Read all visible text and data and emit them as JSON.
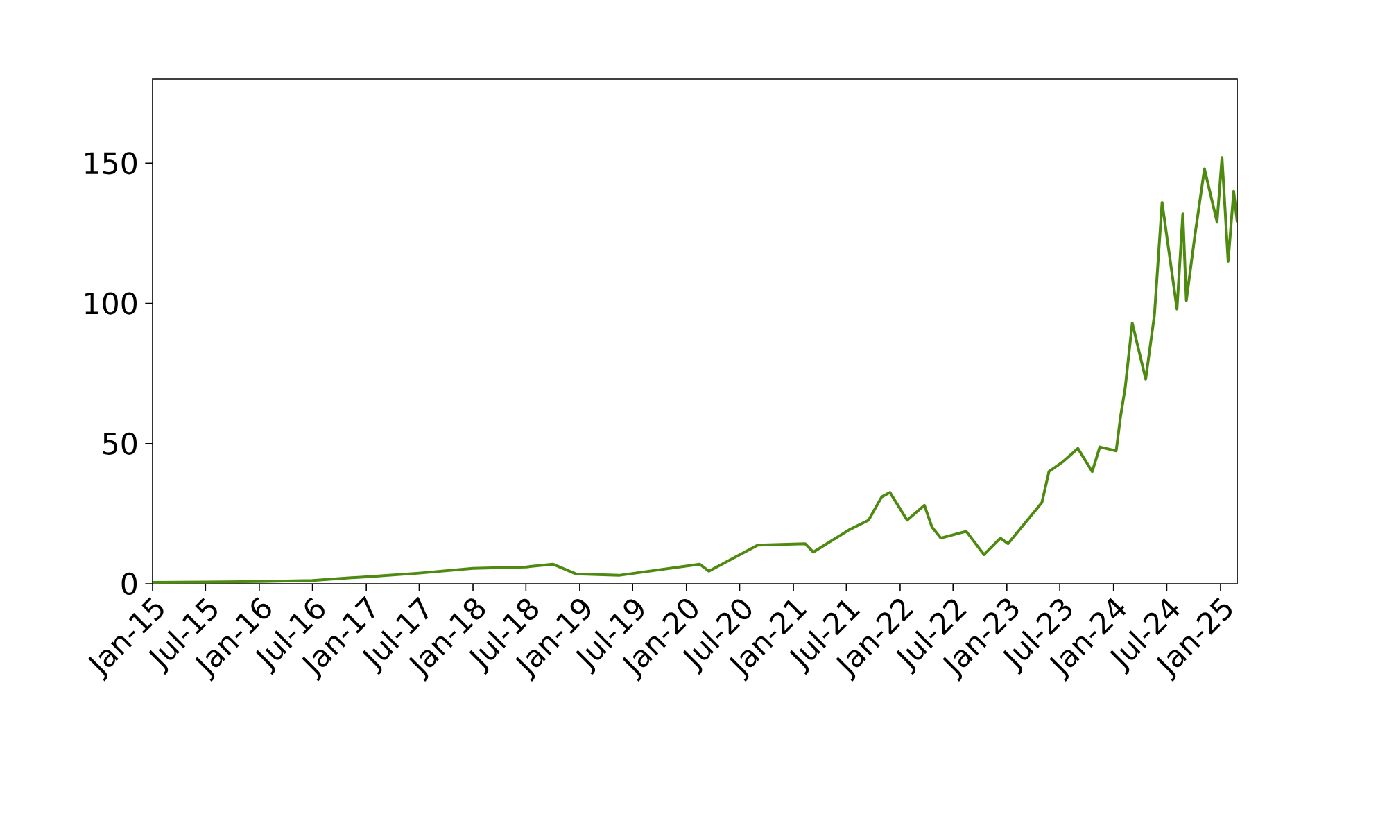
{
  "chart_data": {
    "type": "line",
    "xlim": [
      "2015-01-01",
      "2025-02-27"
    ],
    "ylim": [
      0,
      180
    ],
    "yticks": [
      0,
      50,
      100,
      150
    ],
    "xticks": [
      {
        "value": "2015-01-01",
        "label": "Jan-15"
      },
      {
        "value": "2015-07-01",
        "label": "Jul-15"
      },
      {
        "value": "2016-01-01",
        "label": "Jan-16"
      },
      {
        "value": "2016-07-01",
        "label": "Jul-16"
      },
      {
        "value": "2017-01-01",
        "label": "Jan-17"
      },
      {
        "value": "2017-07-01",
        "label": "Jul-17"
      },
      {
        "value": "2018-01-01",
        "label": "Jan-18"
      },
      {
        "value": "2018-07-01",
        "label": "Jul-18"
      },
      {
        "value": "2019-01-01",
        "label": "Jan-19"
      },
      {
        "value": "2019-07-01",
        "label": "Jul-19"
      },
      {
        "value": "2020-01-01",
        "label": "Jan-20"
      },
      {
        "value": "2020-07-01",
        "label": "Jul-20"
      },
      {
        "value": "2021-01-01",
        "label": "Jan-21"
      },
      {
        "value": "2021-07-01",
        "label": "Jul-21"
      },
      {
        "value": "2022-01-01",
        "label": "Jan-22"
      },
      {
        "value": "2022-07-01",
        "label": "Jul-22"
      },
      {
        "value": "2023-01-01",
        "label": "Jan-23"
      },
      {
        "value": "2023-07-01",
        "label": "Jul-23"
      },
      {
        "value": "2024-01-01",
        "label": "Jan-24"
      },
      {
        "value": "2024-07-01",
        "label": "Jul-24"
      },
      {
        "value": "2025-01-01",
        "label": "Jan-25"
      }
    ],
    "series": [
      {
        "color": "#4e8a10",
        "x": [
          "2015-01-02",
          "2015-07-01",
          "2016-01-01",
          "2016-07-01",
          "2017-01-01",
          "2017-07-01",
          "2018-01-01",
          "2018-07-01",
          "2018-10-01",
          "2018-12-20",
          "2019-05-15",
          "2020-02-15",
          "2020-03-18",
          "2020-09-01",
          "2021-02-10",
          "2021-03-10",
          "2021-07-10",
          "2021-09-15",
          "2021-10-30",
          "2021-11-27",
          "2022-01-25",
          "2022-03-25",
          "2022-04-20",
          "2022-05-20",
          "2022-08-15",
          "2022-10-15",
          "2022-12-10",
          "2023-01-05",
          "2023-05-01",
          "2023-05-25",
          "2023-07-10",
          "2023-09-01",
          "2023-10-20",
          "2023-11-15",
          "2024-01-10",
          "2024-01-25",
          "2024-02-10",
          "2024-03-05",
          "2024-04-20",
          "2024-05-20",
          "2024-06-15",
          "2024-08-05",
          "2024-08-25",
          "2024-09-06",
          "2024-10-05",
          "2024-11-07",
          "2024-12-20",
          "2025-01-06",
          "2025-01-27",
          "2025-02-15",
          "2025-02-27"
        ],
        "values": [
          0.5,
          0.6,
          0.8,
          1.2,
          2.5,
          3.8,
          5.5,
          6,
          7,
          3.5,
          3,
          7,
          4.5,
          13.8,
          14.3,
          11.3,
          19.2,
          22.7,
          31,
          32.6,
          22.7,
          28,
          20.2,
          16.3,
          18.7,
          10.4,
          16.3,
          14.3,
          29,
          40,
          43.4,
          48.3,
          40,
          48.8,
          47.4,
          59.7,
          70,
          93,
          73,
          96,
          136,
          98,
          132,
          101,
          124,
          148,
          129,
          152,
          115,
          140,
          129
        ]
      }
    ]
  }
}
